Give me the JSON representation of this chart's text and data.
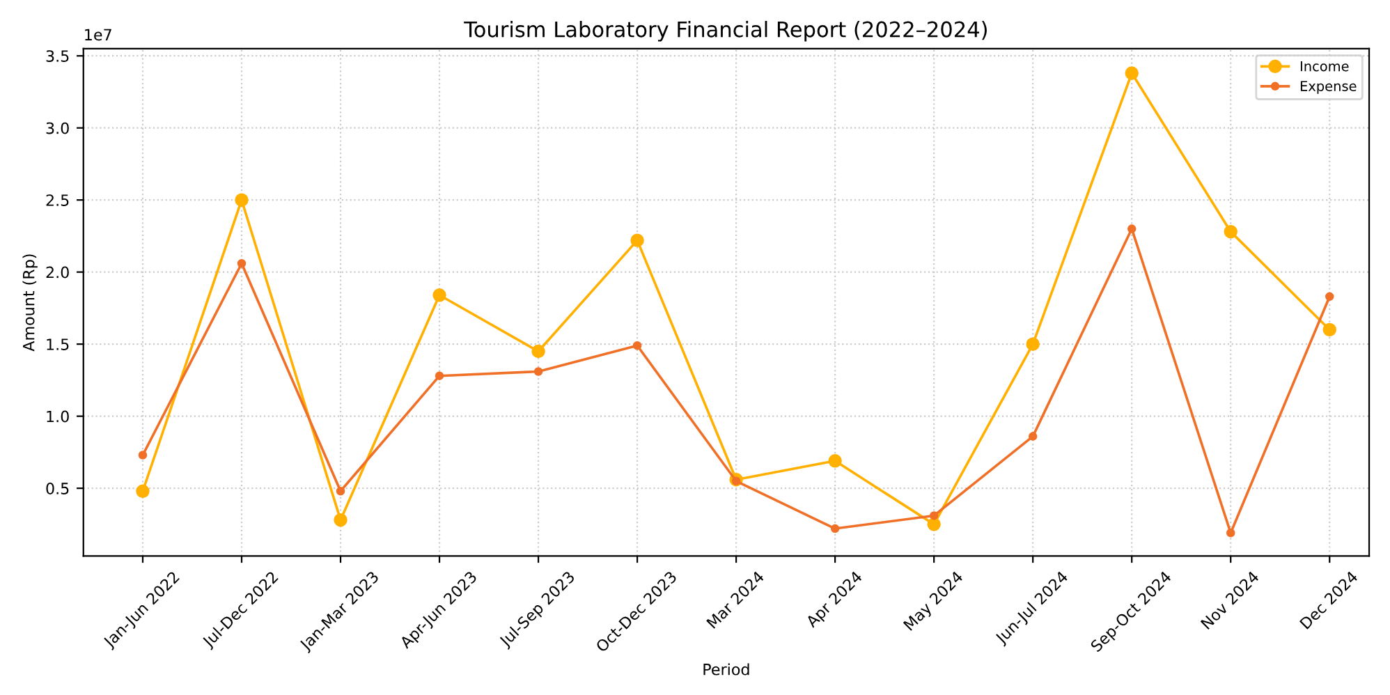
{
  "chart_data": {
    "type": "line",
    "title": "Tourism Laboratory Financial Report (2022–2024)",
    "xlabel": "Period",
    "ylabel": "Amount (Rp)",
    "categories": [
      "Jan-Jun 2022",
      "Jul-Dec 2022",
      "Jan-Mar 2023",
      "Apr-Jun 2023",
      "Jul-Sep 2023",
      "Oct-Dec 2023",
      "Mar 2024",
      "Apr 2024",
      "May 2024",
      "Jun-Jul 2024",
      "Sep-Oct 2024",
      "Nov 2024",
      "Dec 2024"
    ],
    "series": [
      {
        "name": "Income",
        "color": "#ffb000",
        "values": [
          0.48,
          2.5,
          0.28,
          1.84,
          1.45,
          2.22,
          0.56,
          0.69,
          0.25,
          1.5,
          3.38,
          2.28,
          1.6
        ]
      },
      {
        "name": "Expense",
        "color": "#f07028",
        "values": [
          0.73,
          2.06,
          0.48,
          1.28,
          1.31,
          1.49,
          0.55,
          0.22,
          0.31,
          0.86,
          2.3,
          0.19,
          1.83
        ]
      }
    ],
    "ylim": [
      0.03,
      3.55
    ],
    "yticks": [
      {
        "value": 0.5,
        "label": "0.5"
      },
      {
        "value": 1.0,
        "label": "1.0"
      },
      {
        "value": 1.5,
        "label": "1.5"
      },
      {
        "value": 2.0,
        "label": "2.0"
      },
      {
        "value": 2.5,
        "label": "2.5"
      },
      {
        "value": 3.0,
        "label": "3.0"
      },
      {
        "value": 3.5,
        "label": "3.5"
      }
    ],
    "annotations": [
      "1e7"
    ],
    "grid": true,
    "legend": "top right",
    "marker": "circle",
    "line_style": "solid"
  }
}
